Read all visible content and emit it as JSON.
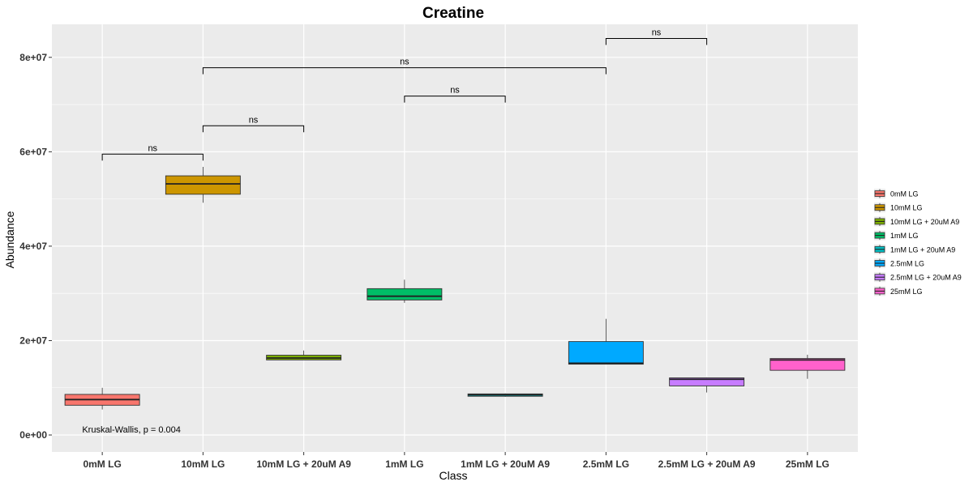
{
  "chart_data": {
    "type": "box",
    "title": "Creatine",
    "xlabel": "Class",
    "ylabel": "Abundance",
    "ylim": [
      -3600000,
      87000000
    ],
    "yticks": [
      0,
      20000000,
      40000000,
      60000000,
      80000000
    ],
    "ytick_labels": [
      "0e+00",
      "2e+07",
      "4e+07",
      "6e+07",
      "8e+07"
    ],
    "categories": [
      "0mM LG",
      "10mM LG",
      "10mM LG + 20uM A9",
      "1mM LG",
      "1mM LG + 20uM A9",
      "2.5mM LG",
      "2.5mM LG + 20uM A9",
      "25mM LG"
    ],
    "colors": [
      "#F8766D",
      "#CD9600",
      "#7CAE00",
      "#00BE67",
      "#00BFC4",
      "#00A9FF",
      "#C77CFF",
      "#FF61CC"
    ],
    "boxes": [
      {
        "min": 5400000,
        "q1": 6300000,
        "median": 7500000,
        "q3": 8600000,
        "max": 10000000
      },
      {
        "min": 49200000,
        "q1": 51000000,
        "median": 53200000,
        "q3": 54900000,
        "max": 56800000
      },
      {
        "min": 15900000,
        "q1": 15900000,
        "median": 16300000,
        "q3": 16900000,
        "max": 17900000
      },
      {
        "min": 28000000,
        "q1": 28600000,
        "median": 29400000,
        "q3": 31000000,
        "max": 32900000
      },
      {
        "min": 8100000,
        "q1": 8200000,
        "median": 8500000,
        "q3": 8700000,
        "max": 8800000
      },
      {
        "min": 15000000,
        "q1": 15000000,
        "median": 15200000,
        "q3": 19800000,
        "max": 24600000
      },
      {
        "min": 9000000,
        "q1": 10400000,
        "median": 11800000,
        "q3": 12100000,
        "max": 12200000
      },
      {
        "min": 11900000,
        "q1": 13700000,
        "median": 15900000,
        "q3": 16200000,
        "max": 17000000
      }
    ],
    "comparisons": [
      {
        "from": 0,
        "to": 1,
        "y": 59500000,
        "label": "ns"
      },
      {
        "from": 1,
        "to": 2,
        "y": 65500000,
        "label": "ns"
      },
      {
        "from": 3,
        "to": 4,
        "y": 71800000,
        "label": "ns"
      },
      {
        "from": 1,
        "to": 5,
        "y": 77800000,
        "label": "ns"
      },
      {
        "from": 5,
        "to": 6,
        "y": 84000000,
        "label": "ns"
      }
    ],
    "annotation": "Kruskal-Wallis, p = 0.004",
    "annotation_pos": {
      "category": 0,
      "y": 500000
    },
    "legend": {
      "position": "right",
      "entries": [
        "0mM LG",
        "10mM LG",
        "10mM LG + 20uM A9",
        "1mM LG",
        "1mM LG + 20uM A9",
        "2.5mM LG",
        "2.5mM LG + 20uM A9",
        "25mM LG"
      ]
    },
    "grid": true,
    "background": "#EBEBEB"
  }
}
